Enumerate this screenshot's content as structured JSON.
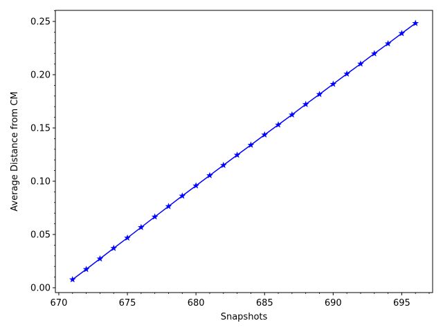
{
  "chart_data": {
    "type": "line",
    "title": "",
    "xlabel": "Snapshots",
    "ylabel": "Average Distance from CM",
    "xlim": [
      669.75,
      697.25
    ],
    "ylim": [
      -0.00455,
      0.2604
    ],
    "x_ticks": [
      670,
      675,
      680,
      685,
      690,
      695
    ],
    "x_tick_labels": [
      "670",
      "675",
      "680",
      "685",
      "690",
      "695"
    ],
    "y_ticks": [
      0.0,
      0.05,
      0.1,
      0.15,
      0.2,
      0.25
    ],
    "y_tick_labels": [
      "0.00",
      "0.05",
      "0.10",
      "0.15",
      "0.20",
      "0.25"
    ],
    "grid": false,
    "legend": "none",
    "series": [
      {
        "color": "#0000ff",
        "marker": "star",
        "x": [
          671,
          672,
          673,
          674,
          675,
          676,
          677,
          678,
          679,
          680,
          681,
          682,
          683,
          684,
          685,
          686,
          687,
          688,
          689,
          690,
          691,
          692,
          693,
          694,
          695,
          696
        ],
        "y": [
          0.0077,
          0.0173,
          0.0272,
          0.0371,
          0.0468,
          0.0567,
          0.0666,
          0.0764,
          0.0862,
          0.0958,
          0.1054,
          0.115,
          0.1246,
          0.134,
          0.1436,
          0.153,
          0.1624,
          0.1722,
          0.1816,
          0.1912,
          0.2008,
          0.2102,
          0.2198,
          0.2292,
          0.2388,
          0.2483
        ]
      }
    ]
  }
}
